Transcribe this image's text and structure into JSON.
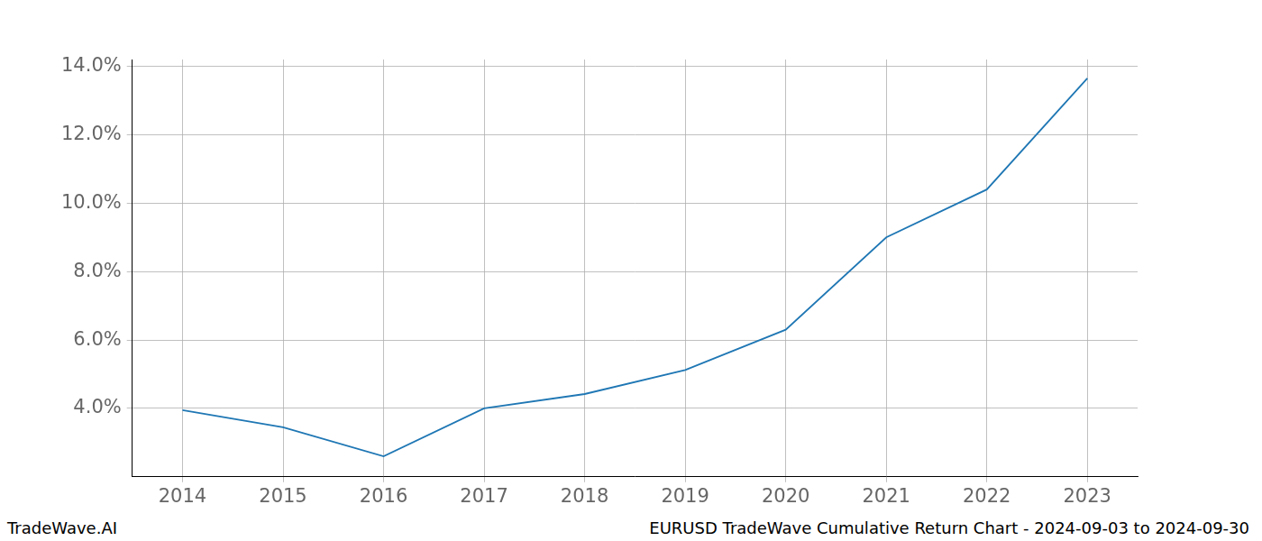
{
  "chart_data": {
    "type": "line",
    "title": "EURUSD TradeWave Cumulative Return Chart - 2024-09-03 to 2024-09-30",
    "source": "TradeWave.AI",
    "categories": [
      "2014",
      "2015",
      "2016",
      "2017",
      "2018",
      "2019",
      "2020",
      "2021",
      "2022",
      "2023"
    ],
    "values": [
      3.95,
      3.45,
      2.6,
      4.0,
      4.42,
      5.12,
      6.3,
      9.0,
      10.4,
      13.65
    ],
    "color": "#1f77b4",
    "ylim": [
      2.0,
      14.2
    ],
    "yticks": [
      {
        "value": 4,
        "label": "4.0%"
      },
      {
        "value": 6,
        "label": "6.0%"
      },
      {
        "value": 8,
        "label": "8.0%"
      },
      {
        "value": 10,
        "label": "10.0%"
      },
      {
        "value": 12,
        "label": "12.0%"
      },
      {
        "value": 14,
        "label": "14.0%"
      }
    ],
    "grid": true
  }
}
